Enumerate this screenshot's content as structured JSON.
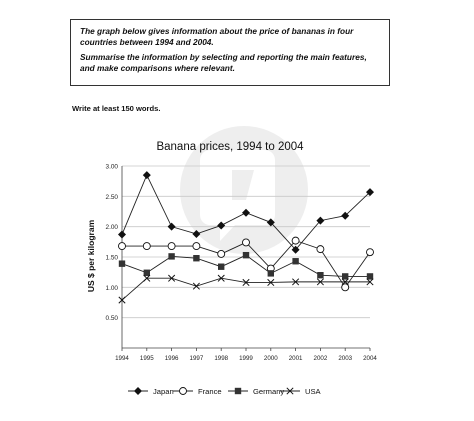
{
  "task": {
    "line1": "The graph below gives information about the price of bananas in four countries between 1994 and 2004.",
    "line2": "Summarise the information by selecting and reporting the main features, and make comparisons where relevant."
  },
  "word_count": "Write at least 150 words.",
  "chart_data": {
    "type": "line",
    "title": "Banana prices, 1994 to 2004",
    "ylabel": "US $ per kilogram",
    "xlabel": "",
    "x": [
      "1994",
      "1995",
      "1996",
      "1997",
      "1998",
      "1999",
      "2000",
      "2001",
      "2002",
      "2003",
      "2004"
    ],
    "y_ticks": [
      "0.50",
      "1.00",
      "1.50",
      "2.00",
      "2.50",
      "3.00"
    ],
    "ylim": [
      0,
      3.0
    ],
    "grid": "horizontal",
    "legend_position": "bottom",
    "series": [
      {
        "name": "Japan",
        "marker": "diamond",
        "values": [
          1.87,
          2.85,
          2.0,
          1.88,
          2.02,
          2.23,
          2.07,
          1.62,
          2.1,
          2.18,
          2.57
        ]
      },
      {
        "name": "France",
        "marker": "circle",
        "values": [
          1.68,
          1.68,
          1.68,
          1.68,
          1.55,
          1.74,
          1.31,
          1.77,
          1.63,
          1.0,
          1.58
        ]
      },
      {
        "name": "Germany",
        "marker": "square",
        "values": [
          1.39,
          1.24,
          1.51,
          1.48,
          1.34,
          1.53,
          1.23,
          1.43,
          1.2,
          1.18,
          1.18
        ]
      },
      {
        "name": "USA",
        "marker": "cross",
        "values": [
          0.79,
          1.15,
          1.15,
          1.02,
          1.15,
          1.08,
          1.08,
          1.09,
          1.09,
          1.09,
          1.09
        ]
      }
    ]
  }
}
